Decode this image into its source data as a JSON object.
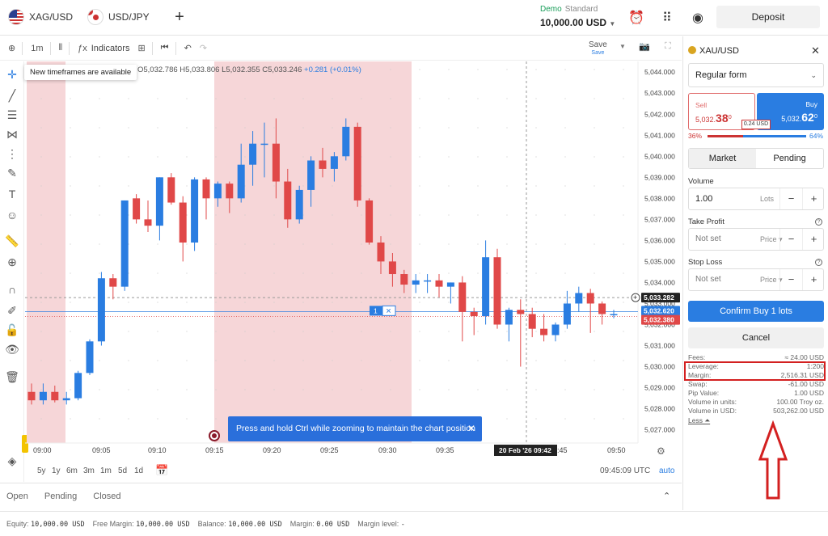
{
  "topbar": {
    "tabs": [
      {
        "symbol": "XAG/USD",
        "flag": "us"
      },
      {
        "symbol": "USD/JPY",
        "flag": "us-jp"
      }
    ],
    "add_icon": "plus-icon",
    "account_mode": "Demo",
    "account_type": "Standard",
    "balance": "10,000.00 USD",
    "deposit_label": "Deposit",
    "icons": [
      "alarm-clock-icon",
      "apps-grid-icon",
      "user-account-icon"
    ]
  },
  "chart_toolbar": {
    "timeframe": "1m",
    "indicators_label": "Indicators",
    "save_label": "Save",
    "save_sub": "Save"
  },
  "tooltip_timeframes": "New timeframes are available",
  "ohlc": {
    "o": "O5,032.786",
    "h": "H5,033.806",
    "l": "L5,032.355",
    "c": "C5,033.246",
    "chg": "+0.281 (+0.01%)"
  },
  "toast": "Press and hold Ctrl while zooming to maintain the chart position",
  "chart_data": {
    "type": "candlestick",
    "ylim": [
      5026.6,
      5044.2
    ],
    "y_ticks": [
      "5,044.000",
      "5,043.000",
      "5,042.000",
      "5,041.000",
      "5,040.000",
      "5,039.000",
      "5,038.000",
      "5,037.000",
      "5,036.000",
      "5,035.000",
      "5,034.000",
      "5,033.000",
      "5,032.000",
      "5,031.000",
      "5,030.000",
      "5,029.000",
      "5,028.000",
      "5,027.000"
    ],
    "x_ticks": [
      "09:00",
      "09:05",
      "09:10",
      "09:15",
      "09:20",
      "09:25",
      "09:30",
      "09:35",
      "09:45",
      "09:50"
    ],
    "price_labels": [
      {
        "text": "5,033.282",
        "role": "crosshair"
      },
      {
        "text": "5,032.620",
        "role": "ask"
      },
      {
        "text": "5,032.380",
        "role": "bid"
      }
    ],
    "crosshair_time": "20 Feb '26   09:42",
    "position_qty": "1",
    "candles": [
      [
        5028.8,
        5029.2,
        5028.2,
        5028.4
      ],
      [
        5028.4,
        5029.2,
        5028.2,
        5028.8
      ],
      [
        5028.8,
        5029.1,
        5028.3,
        5028.4
      ],
      [
        5028.4,
        5028.8,
        5028.2,
        5028.5
      ],
      [
        5028.5,
        5029.8,
        5028.4,
        5029.7
      ],
      [
        5029.7,
        5031.3,
        5029.6,
        5031.2
      ],
      [
        5031.2,
        5034.5,
        5031.0,
        5034.2
      ],
      [
        5034.2,
        5034.4,
        5033.2,
        5033.8
      ],
      [
        5033.8,
        5037.9,
        5033.6,
        5037.9
      ],
      [
        5038.0,
        5038.2,
        5036.8,
        5037.0
      ],
      [
        5037.0,
        5037.9,
        5036.4,
        5036.7
      ],
      [
        5036.7,
        5039.0,
        5036.0,
        5039.0
      ],
      [
        5039.0,
        5039.2,
        5037.7,
        5037.8
      ],
      [
        5037.8,
        5038.1,
        5035.0,
        5035.9
      ],
      [
        5035.9,
        5039.0,
        5035.5,
        5038.9
      ],
      [
        5038.9,
        5039.0,
        5037.0,
        5038.0
      ],
      [
        5038.0,
        5038.8,
        5037.6,
        5038.7
      ],
      [
        5038.7,
        5038.8,
        5037.3,
        5038.0
      ],
      [
        5038.0,
        5040.6,
        5037.8,
        5039.6
      ],
      [
        5039.6,
        5041.2,
        5038.6,
        5040.6
      ],
      [
        5040.6,
        5041.6,
        5039.0,
        5040.6
      ],
      [
        5040.6,
        5041.8,
        5038.0,
        5038.8
      ],
      [
        5038.8,
        5039.4,
        5036.6,
        5037.0
      ],
      [
        5037.0,
        5038.6,
        5036.8,
        5038.4
      ],
      [
        5038.4,
        5040.0,
        5037.6,
        5039.8
      ],
      [
        5039.8,
        5040.4,
        5039.0,
        5039.4
      ],
      [
        5039.4,
        5040.2,
        5038.8,
        5040.0
      ],
      [
        5040.0,
        5041.8,
        5039.8,
        5041.4
      ],
      [
        5041.4,
        5041.6,
        5037.6,
        5037.9
      ],
      [
        5037.9,
        5038.0,
        5035.8,
        5035.9
      ],
      [
        5035.9,
        5036.2,
        5034.4,
        5035.0
      ],
      [
        5035.0,
        5035.4,
        5033.8,
        5034.4
      ],
      [
        5034.4,
        5034.6,
        5033.5,
        5033.9
      ],
      [
        5033.9,
        5034.4,
        5033.5,
        5034.1
      ],
      [
        5034.1,
        5034.4,
        5033.5,
        5034.1
      ],
      [
        5034.1,
        5034.4,
        5033.3,
        5033.8
      ],
      [
        5033.8,
        5034.0,
        5033.0,
        5034.0
      ],
      [
        5034.0,
        5034.3,
        5031.2,
        5032.6
      ],
      [
        5032.6,
        5032.8,
        5031.5,
        5032.4
      ],
      [
        5032.4,
        5036.0,
        5032.0,
        5035.2
      ],
      [
        5035.2,
        5035.6,
        5031.8,
        5032.0
      ],
      [
        5032.0,
        5032.8,
        5031.2,
        5032.7
      ],
      [
        5032.7,
        5033.2,
        5030.0,
        5032.5
      ],
      [
        5032.5,
        5032.8,
        5031.4,
        5031.8
      ],
      [
        5031.8,
        5032.5,
        5031.2,
        5031.5
      ],
      [
        5031.5,
        5032.1,
        5031.2,
        5032.0
      ],
      [
        5032.0,
        5033.6,
        5031.8,
        5033.0
      ],
      [
        5033.0,
        5033.8,
        5032.6,
        5033.5
      ],
      [
        5033.5,
        5033.7,
        5031.6,
        5033.0
      ],
      [
        5033.0,
        5033.1,
        5032.0,
        5032.5
      ],
      [
        5032.5,
        5032.7,
        5032.3,
        5032.5
      ]
    ]
  },
  "timeframes": [
    "5y",
    "1y",
    "6m",
    "3m",
    "1m",
    "5d",
    "1d"
  ],
  "clock": "09:45:09 UTC",
  "auto_label": "auto",
  "bottom_tabs": [
    "Open",
    "Pending",
    "Closed"
  ],
  "status": [
    {
      "k": "Equity:",
      "v": "10,000.00 USD"
    },
    {
      "k": "Free Margin:",
      "v": "10,000.00 USD"
    },
    {
      "k": "Balance:",
      "v": "10,000.00 USD"
    },
    {
      "k": "Margin:",
      "v": "0.00 USD"
    },
    {
      "k": "Margin level:",
      "v": "-"
    }
  ],
  "panel": {
    "title": "XAU/USD",
    "form": "Regular form",
    "sell": {
      "label": "Sell",
      "main": "5,032.",
      "big": "38",
      "sup": "0"
    },
    "buy": {
      "label": "Buy",
      "main": "5,032.",
      "big": "62",
      "sup": "0"
    },
    "spread": "0.24 USD",
    "sell_pct": "36%",
    "buy_pct": "64%",
    "market": "Market",
    "pending": "Pending",
    "volume_label": "Volume",
    "volume": "1.00",
    "volume_unit": "Lots",
    "tp_label": "Take Profit",
    "tp_value": "Not set",
    "tp_unit": "Price",
    "sl_label": "Stop Loss",
    "sl_value": "Not set",
    "sl_unit": "Price",
    "confirm": "Confirm Buy 1 lots",
    "cancel": "Cancel",
    "info": [
      {
        "k": "Fees:",
        "v": "≈ 24.00 USD"
      },
      {
        "k": "Leverage:",
        "v": "1:200"
      },
      {
        "k": "Margin:",
        "v": "2,516.31 USD"
      },
      {
        "k": "Swap:",
        "v": "-61.00 USD"
      },
      {
        "k": "Pip Value:",
        "v": "1.00 USD"
      },
      {
        "k": "Volume in units:",
        "v": "100.00 Troy oz."
      },
      {
        "k": "Volume in USD:",
        "v": "503,262.00 USD"
      }
    ],
    "less": "Less"
  },
  "colors": {
    "up": "#2a7de1",
    "down": "#e04848",
    "highlight": "#d32020"
  }
}
